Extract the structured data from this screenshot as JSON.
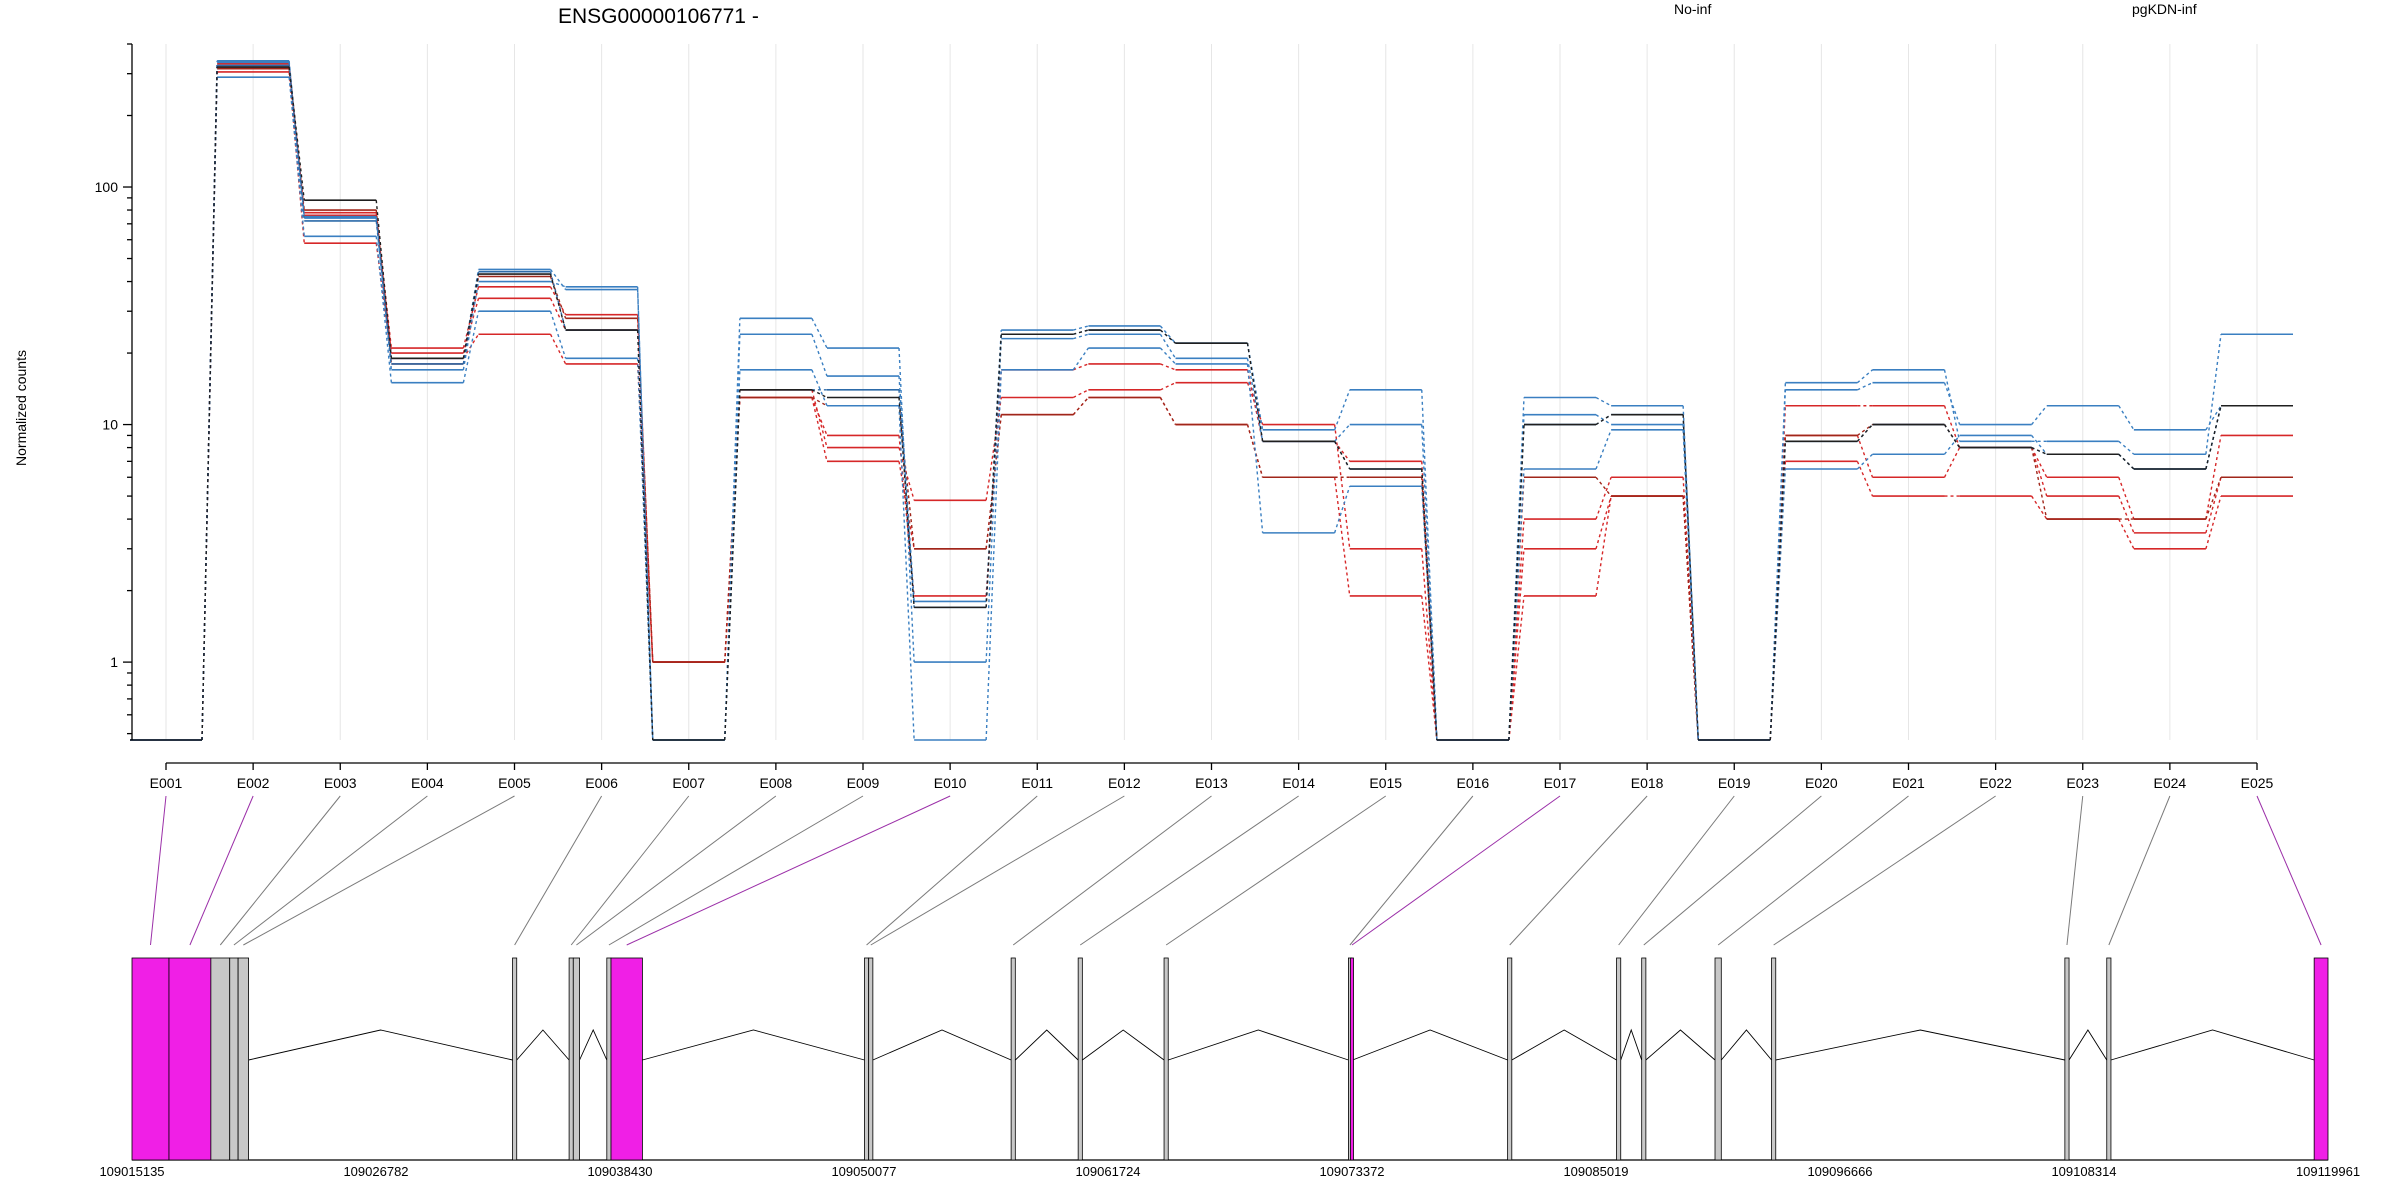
{
  "chart_data": {
    "type": "line",
    "title": "ENSG00000106771 -",
    "ylabel": "Normalized counts",
    "xlabel": "",
    "yscale": "log",
    "ylim": [
      0.47,
      400
    ],
    "yticks": [
      {
        "value": 1,
        "label": "1"
      },
      {
        "value": 10,
        "label": "10"
      },
      {
        "value": 100,
        "label": "100"
      }
    ],
    "grid": "vertical",
    "legend": [
      {
        "name": "No-inf",
        "color": "#d62728"
      },
      {
        "name": "pgKDN-inf",
        "color": "#3a7fc1"
      }
    ],
    "categories": [
      "E001",
      "E002",
      "E003",
      "E004",
      "E005",
      "E006",
      "E007",
      "E008",
      "E009",
      "E010",
      "E011",
      "E012",
      "E013",
      "E014",
      "E015",
      "E016",
      "E017",
      "E018",
      "E019",
      "E020",
      "E021",
      "E022",
      "E023",
      "E024",
      "E025"
    ],
    "series": [
      {
        "group": "No-inf",
        "color": "#d62728",
        "values": [
          0.47,
          305,
          58,
          19,
          24,
          18,
          1,
          13,
          7,
          3,
          11,
          13,
          10,
          6,
          1.9,
          0.47,
          1.9,
          5,
          0.47,
          7,
          5,
          5,
          4,
          3,
          5
        ]
      },
      {
        "group": "No-inf",
        "color": "#d62728",
        "values": [
          0.47,
          320,
          76,
          20,
          34,
          25,
          1,
          14,
          8,
          4.8,
          13,
          14,
          15,
          10,
          3,
          0.47,
          3,
          5,
          0.47,
          9,
          6,
          8,
          5,
          3.5,
          6
        ]
      },
      {
        "group": "No-inf",
        "color": "#d62728",
        "values": [
          0.47,
          330,
          78,
          21,
          38,
          29,
          1,
          13,
          9,
          1.9,
          17,
          18,
          17,
          8.5,
          7,
          0.47,
          4,
          6,
          0.47,
          12,
          12,
          8,
          6,
          4,
          9
        ]
      },
      {
        "group": "No-inf",
        "color": "#a0261a",
        "values": [
          0.47,
          315,
          80,
          18,
          42,
          28,
          1,
          13,
          12,
          3,
          11,
          13,
          10,
          6,
          6,
          0.47,
          6,
          5,
          0.47,
          9,
          10,
          8,
          4,
          4,
          6
        ]
      },
      {
        "group": "pgKDN-inf",
        "color": "#3a7fc1",
        "values": [
          0.47,
          290,
          62,
          15,
          30,
          19,
          0.47,
          17,
          12,
          0.47,
          17,
          21,
          18,
          3.5,
          5.5,
          0.47,
          6.5,
          9.5,
          0.47,
          6.5,
          7.5,
          9,
          7.5,
          6.5,
          12
        ]
      },
      {
        "group": "pgKDN-inf",
        "color": "#3a7fc1",
        "values": [
          0.47,
          335,
          75,
          17,
          40,
          38,
          0.47,
          28,
          21,
          1,
          23,
          24,
          19,
          8.5,
          10,
          0.47,
          11,
          10,
          0.47,
          14,
          15,
          10,
          12,
          9.5,
          12
        ]
      },
      {
        "group": "pgKDN-inf",
        "color": "#3a7fc1",
        "values": [
          0.47,
          340,
          74,
          19,
          45,
          37,
          0.47,
          24,
          16,
          1.8,
          25,
          26,
          22,
          9.5,
          14,
          0.47,
          13,
          12,
          0.47,
          15,
          17,
          8.5,
          8.5,
          7.5,
          24
        ]
      },
      {
        "group": "pgKDN-inf",
        "color": "#2c6aa8",
        "values": [
          0.47,
          325,
          72,
          18,
          44,
          25,
          0.47,
          14,
          14,
          1.7,
          24,
          25,
          22,
          8.5,
          6.5,
          0.47,
          10,
          11,
          0.47,
          8.5,
          10,
          8,
          7.5,
          6.5,
          12
        ]
      },
      {
        "group": "pgKDN-inf",
        "color": "#1f1f1f",
        "values": [
          0.47,
          320,
          88,
          19,
          43,
          25,
          0.47,
          14,
          13,
          1.7,
          24,
          25,
          22,
          8.5,
          6.5,
          0.47,
          10,
          11,
          0.47,
          8.5,
          10,
          8,
          7.5,
          6.5,
          12
        ]
      }
    ],
    "gene_track": {
      "coord_start": 109015135,
      "coord_end": 109119961,
      "coord_labels": [
        "109015135",
        "109026782",
        "109038430",
        "109050077",
        "109061724",
        "109073372",
        "109085019",
        "109096666",
        "109108314",
        "109119961"
      ],
      "highlight_color": "#f01fe6",
      "exons": [
        {
          "id": "E001",
          "start": 109015135,
          "end": 109016900,
          "highlight": true
        },
        {
          "id": "E002",
          "start": 109016900,
          "end": 109018900,
          "highlight": true
        },
        {
          "id": "E003",
          "start": 109018900,
          "end": 109019800,
          "highlight": false
        },
        {
          "id": "E004",
          "start": 109019800,
          "end": 109020200,
          "highlight": false
        },
        {
          "id": "E005",
          "start": 109020200,
          "end": 109020700,
          "highlight": false
        },
        {
          "id": "E006",
          "start": 109033300,
          "end": 109033500,
          "highlight": false
        },
        {
          "id": "E007",
          "start": 109036000,
          "end": 109036200,
          "highlight": false
        },
        {
          "id": "E008",
          "start": 109036200,
          "end": 109036500,
          "highlight": false
        },
        {
          "id": "E009",
          "start": 109037800,
          "end": 109038000,
          "highlight": false
        },
        {
          "id": "E010",
          "start": 109038000,
          "end": 109039500,
          "highlight": true
        },
        {
          "id": "E011",
          "start": 109050100,
          "end": 109050300,
          "highlight": false
        },
        {
          "id": "E012",
          "start": 109050300,
          "end": 109050500,
          "highlight": false
        },
        {
          "id": "E013",
          "start": 109057100,
          "end": 109057300,
          "highlight": false
        },
        {
          "id": "E014",
          "start": 109060300,
          "end": 109060500,
          "highlight": false
        },
        {
          "id": "E015",
          "start": 109064400,
          "end": 109064600,
          "highlight": false
        },
        {
          "id": "E016",
          "start": 109073200,
          "end": 109073300,
          "highlight": false
        },
        {
          "id": "E017",
          "start": 109073300,
          "end": 109073400,
          "highlight": true
        },
        {
          "id": "E018",
          "start": 109080800,
          "end": 109081000,
          "highlight": false
        },
        {
          "id": "E019",
          "start": 109086000,
          "end": 109086200,
          "highlight": false
        },
        {
          "id": "E020",
          "start": 109087200,
          "end": 109087400,
          "highlight": false
        },
        {
          "id": "E021",
          "start": 109090700,
          "end": 109091000,
          "highlight": false
        },
        {
          "id": "E022",
          "start": 109093400,
          "end": 109093600,
          "highlight": false
        },
        {
          "id": "E023",
          "start": 109107400,
          "end": 109107600,
          "highlight": false
        },
        {
          "id": "E024",
          "start": 109109400,
          "end": 109109600,
          "highlight": false
        },
        {
          "id": "E025",
          "start": 109119300,
          "end": 109119961,
          "highlight": true
        }
      ]
    }
  }
}
